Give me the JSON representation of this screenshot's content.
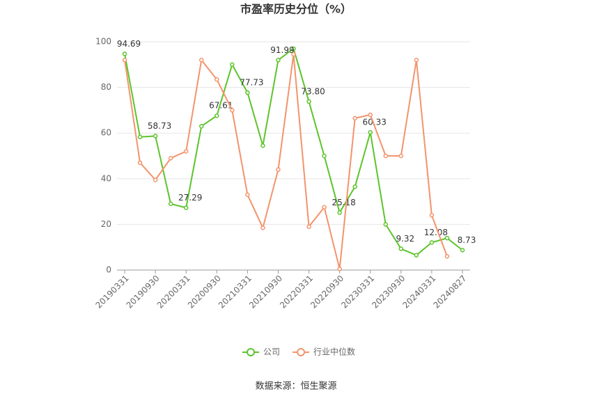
{
  "chart_data": {
    "type": "line",
    "title": "市盈率历史分位（%）",
    "categories": [
      "20190331",
      null,
      "20190930",
      null,
      "20200331",
      null,
      "20200930",
      null,
      "20210331",
      null,
      "20210930",
      null,
      "20220331",
      null,
      "20220930",
      null,
      "20230331",
      null,
      "20230930",
      null,
      "20240331",
      null,
      "20240827"
    ],
    "series": [
      {
        "name": "公司",
        "color": "#5cc42a",
        "values": [
          94.69,
          58.3,
          58.73,
          29,
          27.29,
          63,
          67.61,
          90,
          77.73,
          54.5,
          91.99,
          97,
          73.8,
          50,
          25.18,
          36.5,
          60.33,
          20,
          9.32,
          6.5,
          12.08,
          14,
          8.73
        ],
        "value_labels": [
          "94.69",
          null,
          "58.73",
          null,
          "27.29",
          null,
          "67.61",
          null,
          "77.73",
          null,
          "91.99",
          null,
          "73.80",
          null,
          "25.18",
          null,
          "60.33",
          null,
          "9.32",
          null,
          "12.08",
          null,
          "8.73"
        ]
      },
      {
        "name": "行业中位数",
        "color": "#f4936b",
        "values": [
          92,
          47,
          39.5,
          49,
          52,
          92,
          83.5,
          70,
          33,
          18.5,
          44,
          94.5,
          19,
          27.5,
          0.5,
          66.5,
          68,
          50,
          50,
          92,
          24,
          6,
          null
        ]
      }
    ],
    "ylim": [
      0,
      100
    ],
    "yticks": [
      0,
      20,
      40,
      60,
      80,
      100
    ],
    "grid": true,
    "legend": "bottom",
    "source": "数据来源：恒生聚源"
  }
}
